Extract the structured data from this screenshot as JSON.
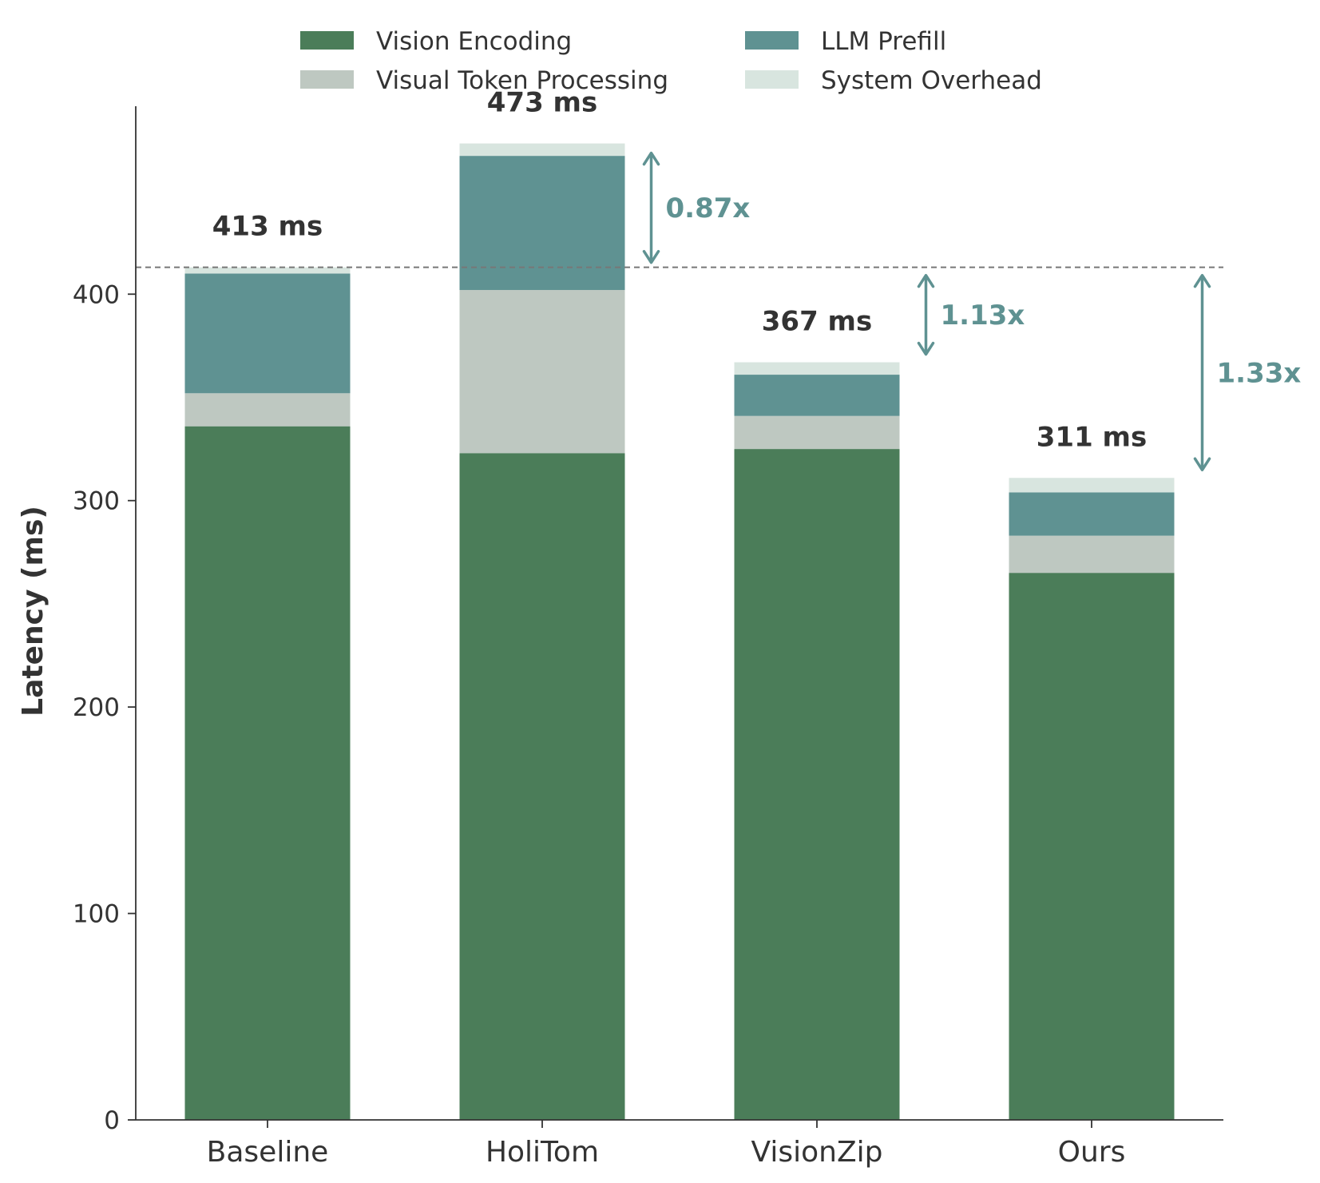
{
  "chart_data": {
    "type": "bar",
    "stacked": true,
    "categories": [
      "Baseline",
      "HoliTom",
      "VisionZip",
      "Ours"
    ],
    "series": [
      {
        "name": "Vision Encoding",
        "color": "#4b7d59",
        "values": [
          336,
          323,
          325,
          265
        ]
      },
      {
        "name": "Visual Token Processing",
        "color": "#bec8c1",
        "values": [
          16,
          79,
          16,
          18
        ]
      },
      {
        "name": "LLM Prefill",
        "color": "#5f9292",
        "values": [
          58,
          65,
          20,
          21
        ]
      },
      {
        "name": "System Overhead",
        "color": "#d8e5df",
        "values": [
          3,
          6,
          6,
          7
        ]
      }
    ],
    "totals": [
      413,
      473,
      367,
      311
    ],
    "total_labels": [
      "413 ms",
      "473 ms",
      "367 ms",
      "311 ms"
    ],
    "ylabel": "Latency (ms)",
    "xlabel": "",
    "title": "",
    "ylim": [
      0,
      498
    ],
    "yticks": [
      0,
      100,
      200,
      300,
      400
    ],
    "baseline_reference": 413,
    "speedups": [
      {
        "category": "HoliTom",
        "label": "0.87x"
      },
      {
        "category": "VisionZip",
        "label": "1.13x"
      },
      {
        "category": "Ours",
        "label": "1.33x"
      }
    ],
    "legend_position": "top",
    "grid": false,
    "accent_color": "#5f9292"
  }
}
